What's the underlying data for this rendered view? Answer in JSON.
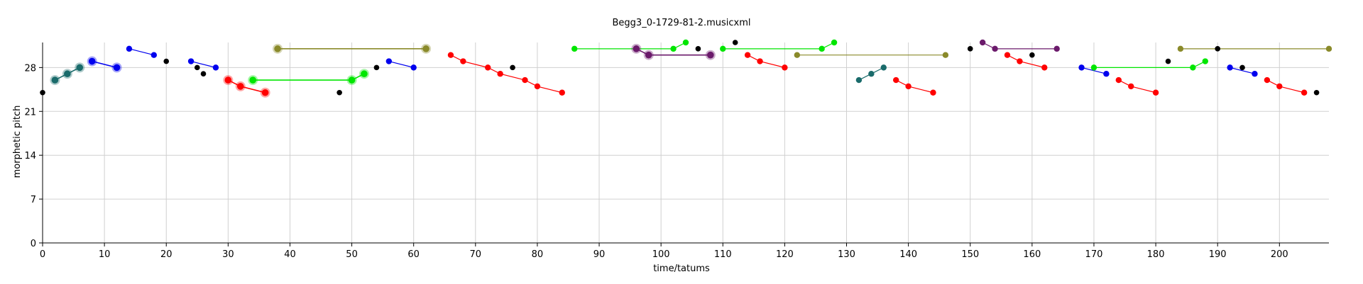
{
  "chart_data": {
    "type": "scatter",
    "title": "Begg3_0-1729-81-2.musicxml",
    "xlabel": "time/tatums",
    "ylabel": "morphetic pitch",
    "xlim": [
      0,
      208
    ],
    "ylim": [
      0,
      32
    ],
    "xticks": [
      0,
      10,
      20,
      30,
      40,
      50,
      60,
      70,
      80,
      90,
      100,
      110,
      120,
      130,
      140,
      150,
      160,
      170,
      180,
      190,
      200
    ],
    "yticks": [
      0,
      7,
      14,
      21,
      28
    ],
    "grid": true,
    "colors": {
      "teal": "#1a6b6b",
      "blue": "#0000ee",
      "red": "#ff0000",
      "green": "#00e600",
      "olive": "#8a8a2a",
      "purple": "#6b1a6b",
      "black": "#000000"
    },
    "patterns": [
      {
        "color": "teal",
        "emph": true,
        "points": [
          [
            2,
            26
          ],
          [
            4,
            27
          ],
          [
            6,
            28
          ]
        ]
      },
      {
        "color": "blue",
        "emph": true,
        "points": [
          [
            8,
            29
          ],
          [
            12,
            28
          ]
        ]
      },
      {
        "color": "blue",
        "emph": false,
        "points": [
          [
            14,
            31
          ],
          [
            18,
            30
          ]
        ]
      },
      {
        "color": "blue",
        "emph": false,
        "points": [
          [
            24,
            29
          ],
          [
            28,
            28
          ]
        ]
      },
      {
        "color": "red",
        "emph": true,
        "points": [
          [
            30,
            26
          ],
          [
            32,
            25
          ],
          [
            36,
            24
          ]
        ]
      },
      {
        "color": "green",
        "emph": true,
        "points": [
          [
            34,
            26
          ],
          [
            50,
            26
          ],
          [
            52,
            27
          ]
        ]
      },
      {
        "color": "olive",
        "emph": true,
        "points": [
          [
            38,
            31
          ],
          [
            62,
            31
          ]
        ]
      },
      {
        "color": "blue",
        "emph": false,
        "points": [
          [
            56,
            29
          ],
          [
            60,
            28
          ]
        ]
      },
      {
        "color": "red",
        "emph": false,
        "points": [
          [
            66,
            30
          ],
          [
            68,
            29
          ],
          [
            72,
            28
          ],
          [
            74,
            27
          ],
          [
            78,
            26
          ],
          [
            80,
            25
          ],
          [
            84,
            24
          ]
        ]
      },
      {
        "color": "green",
        "emph": false,
        "points": [
          [
            86,
            31
          ],
          [
            102,
            31
          ],
          [
            104,
            32
          ]
        ]
      },
      {
        "color": "purple",
        "emph": true,
        "points": [
          [
            96,
            31
          ],
          [
            98,
            30
          ],
          [
            108,
            30
          ]
        ]
      },
      {
        "color": "green",
        "emph": false,
        "points": [
          [
            110,
            31
          ],
          [
            126,
            31
          ],
          [
            128,
            32
          ]
        ]
      },
      {
        "color": "red",
        "emph": false,
        "points": [
          [
            114,
            30
          ],
          [
            116,
            29
          ],
          [
            120,
            28
          ]
        ]
      },
      {
        "color": "olive",
        "emph": false,
        "points": [
          [
            122,
            30
          ],
          [
            146,
            30
          ]
        ]
      },
      {
        "color": "teal",
        "emph": false,
        "points": [
          [
            132,
            26
          ],
          [
            134,
            27
          ],
          [
            136,
            28
          ]
        ]
      },
      {
        "color": "red",
        "emph": false,
        "points": [
          [
            138,
            26
          ],
          [
            140,
            25
          ],
          [
            144,
            24
          ]
        ]
      },
      {
        "color": "purple",
        "emph": false,
        "points": [
          [
            152,
            32
          ],
          [
            154,
            31
          ],
          [
            164,
            31
          ]
        ]
      },
      {
        "color": "red",
        "emph": false,
        "points": [
          [
            156,
            30
          ],
          [
            158,
            29
          ],
          [
            162,
            28
          ]
        ]
      },
      {
        "color": "blue",
        "emph": false,
        "points": [
          [
            168,
            28
          ],
          [
            172,
            27
          ]
        ]
      },
      {
        "color": "green",
        "emph": false,
        "points": [
          [
            170,
            28
          ],
          [
            186,
            28
          ],
          [
            188,
            29
          ]
        ]
      },
      {
        "color": "red",
        "emph": false,
        "points": [
          [
            174,
            26
          ],
          [
            176,
            25
          ],
          [
            180,
            24
          ]
        ]
      },
      {
        "color": "olive",
        "emph": false,
        "points": [
          [
            184,
            31
          ],
          [
            208,
            31
          ]
        ]
      },
      {
        "color": "blue",
        "emph": false,
        "points": [
          [
            192,
            28
          ],
          [
            196,
            27
          ]
        ]
      },
      {
        "color": "red",
        "emph": false,
        "points": [
          [
            198,
            26
          ],
          [
            200,
            25
          ],
          [
            204,
            24
          ]
        ]
      }
    ],
    "other_notes": [
      [
        0,
        24
      ],
      [
        20,
        29
      ],
      [
        25,
        28
      ],
      [
        26,
        27
      ],
      [
        48,
        24
      ],
      [
        54,
        28
      ],
      [
        76,
        28
      ],
      [
        106,
        31
      ],
      [
        112,
        32
      ],
      [
        150,
        31
      ],
      [
        160,
        30
      ],
      [
        182,
        29
      ],
      [
        190,
        31
      ],
      [
        194,
        28
      ],
      [
        206,
        24
      ]
    ]
  }
}
